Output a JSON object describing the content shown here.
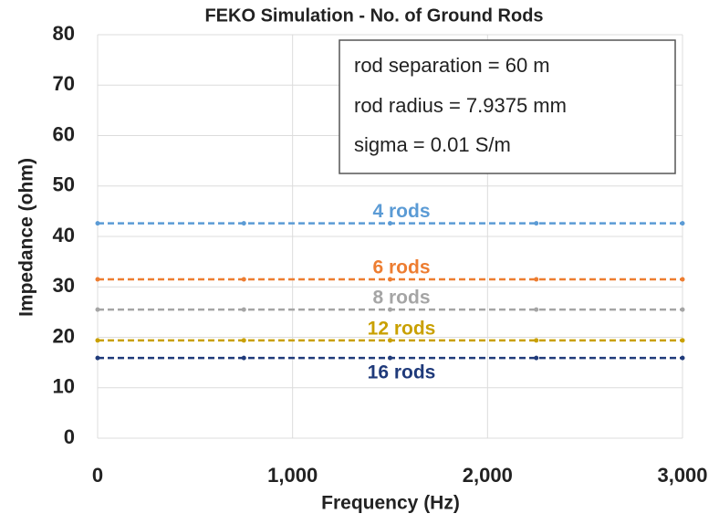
{
  "chart_data": {
    "type": "line",
    "title": "FEKO Simulation - No. of Ground Rods",
    "xlabel": "Frequency (Hz)",
    "ylabel": "Impedance (ohm)",
    "annotation": [
      "rod separation = 60 m",
      "rod radius = 7.9375 mm",
      "sigma = 0.01 S/m"
    ],
    "x": [
      0,
      750,
      1500,
      2250,
      3000
    ],
    "series": [
      {
        "name": "4 rods",
        "color": "#5b9bd5",
        "values": [
          42.6,
          42.6,
          42.6,
          42.6,
          42.6
        ]
      },
      {
        "name": "6 rods",
        "color": "#ed7d31",
        "values": [
          31.5,
          31.5,
          31.5,
          31.5,
          31.5
        ]
      },
      {
        "name": "8 rods",
        "color": "#a5a5a5",
        "values": [
          25.5,
          25.5,
          25.5,
          25.5,
          25.5
        ]
      },
      {
        "name": "12 rods",
        "color": "#c9a000",
        "values": [
          19.4,
          19.4,
          19.4,
          19.4,
          19.4
        ]
      },
      {
        "name": "16 rods",
        "color": "#1f3a7a",
        "values": [
          15.9,
          15.9,
          15.9,
          15.9,
          15.9
        ]
      }
    ],
    "xlim": [
      0,
      3000
    ],
    "xticks": [
      0,
      {
        "value": 1000,
        "label": "1,000"
      },
      {
        "value": 2000,
        "label": "2,000"
      },
      {
        "value": 3000,
        "label": "3,000"
      }
    ],
    "ylim": [
      0,
      80
    ],
    "yticks": [
      0,
      10,
      20,
      30,
      40,
      50,
      60,
      70,
      80
    ],
    "grid": true
  }
}
